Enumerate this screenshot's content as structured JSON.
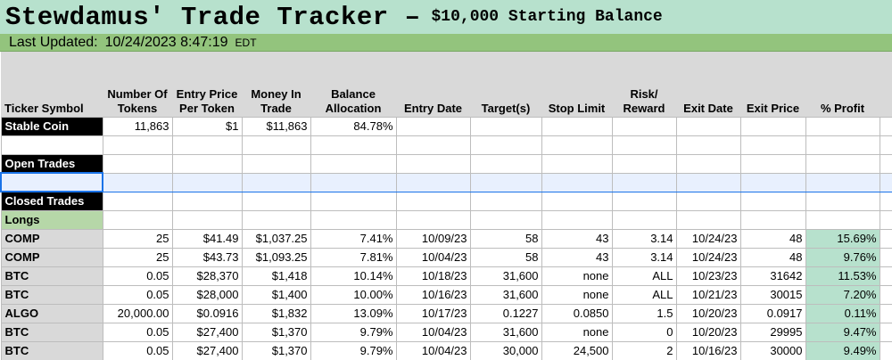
{
  "title": {
    "main": "Stewdamus' Trade Tracker –",
    "sub": "$10,000 Starting Balance"
  },
  "updated": {
    "label": "Last Updated:",
    "value": "10/24/2023 8:47:19",
    "tz": "EDT"
  },
  "columns": [
    "Ticker Symbol",
    "Number Of Tokens",
    "Entry Price Per Token",
    "Money In Trade",
    "Balance Allocation",
    "Entry Date",
    "Target(s)",
    "Stop Limit",
    "Risk/ Reward",
    "Exit Date",
    "Exit Price",
    "% Profit"
  ],
  "stable_coin": {
    "label": "Stable Coin",
    "tokens": "11,863",
    "entry_price": "$1",
    "money_in": "$11,863",
    "allocation": "84.78%"
  },
  "sections": {
    "open_trades": "Open Trades",
    "closed_trades": "Closed Trades",
    "longs": "Longs"
  },
  "trades": [
    {
      "sym": "COMP",
      "tokens": "25",
      "entry": "$41.49",
      "money": "$1,037.25",
      "alloc": "7.41%",
      "entry_date": "10/09/23",
      "target": "58",
      "stop": "43",
      "rr": "3.14",
      "exit_date": "10/24/23",
      "exit_price": "48",
      "profit": "15.69%"
    },
    {
      "sym": "COMP",
      "tokens": "25",
      "entry": "$43.73",
      "money": "$1,093.25",
      "alloc": "7.81%",
      "entry_date": "10/04/23",
      "target": "58",
      "stop": "43",
      "rr": "3.14",
      "exit_date": "10/24/23",
      "exit_price": "48",
      "profit": "9.76%"
    },
    {
      "sym": "BTC",
      "tokens": "0.05",
      "entry": "$28,370",
      "money": "$1,418",
      "alloc": "10.14%",
      "entry_date": "10/18/23",
      "target": "31,600",
      "stop": "none",
      "rr": "ALL",
      "exit_date": "10/23/23",
      "exit_price": "31642",
      "profit": "11.53%"
    },
    {
      "sym": "BTC",
      "tokens": "0.05",
      "entry": "$28,000",
      "money": "$1,400",
      "alloc": "10.00%",
      "entry_date": "10/16/23",
      "target": "31,600",
      "stop": "none",
      "rr": "ALL",
      "exit_date": "10/21/23",
      "exit_price": "30015",
      "profit": "7.20%"
    },
    {
      "sym": "ALGO",
      "tokens": "20,000.00",
      "entry": "$0.0916",
      "money": "$1,832",
      "alloc": "13.09%",
      "entry_date": "10/17/23",
      "target": "0.1227",
      "stop": "0.0850",
      "rr": "1.5",
      "exit_date": "10/20/23",
      "exit_price": "0.0917",
      "profit": "0.11%"
    },
    {
      "sym": "BTC",
      "tokens": "0.05",
      "entry": "$27,400",
      "money": "$1,370",
      "alloc": "9.79%",
      "entry_date": "10/04/23",
      "target": "31,600",
      "stop": "none",
      "rr": "0",
      "exit_date": "10/20/23",
      "exit_price": "29995",
      "profit": "9.47%"
    },
    {
      "sym": "BTC",
      "tokens": "0.05",
      "entry": "$27,400",
      "money": "$1,370",
      "alloc": "9.79%",
      "entry_date": "10/04/23",
      "target": "30,000",
      "stop": "24,500",
      "rr": "2",
      "exit_date": "10/16/23",
      "exit_price": "30000",
      "profit": "9.49%"
    }
  ]
}
